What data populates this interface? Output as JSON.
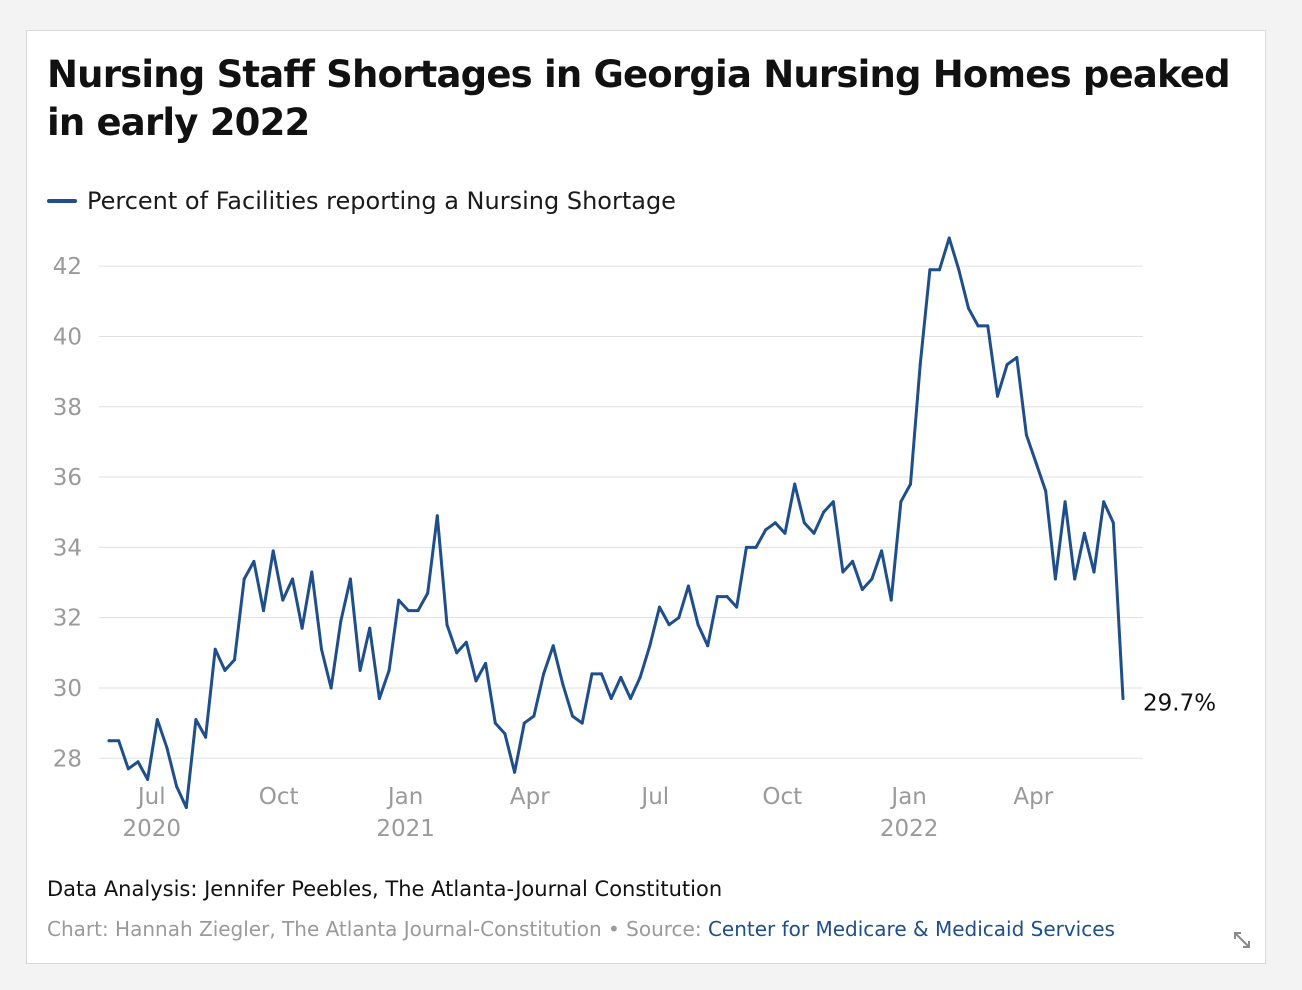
{
  "title": "Nursing Staff Shortages in Georgia Nursing Homes peaked in early 2022",
  "legend": {
    "label": "Percent of Facilities reporting a Nursing Shortage"
  },
  "colors": {
    "line": "#1f4e8c",
    "grid": "#e0e0e0",
    "tick": "#9a9a9a",
    "text": "#111111"
  },
  "chart_data": {
    "type": "line",
    "title": "Nursing Staff Shortages in Georgia Nursing Homes peaked in early 2022",
    "xlabel": "",
    "ylabel": "",
    "grid": true,
    "legend_position": "top-left",
    "x_start": "2020-05-31",
    "x_end": "2022-06-05",
    "ylim": [
      26.5,
      43
    ],
    "yticks": [
      28,
      30,
      32,
      34,
      36,
      38,
      40,
      42
    ],
    "xticks": [
      {
        "date": "2020-07-01",
        "label": "Jul",
        "sub": "2020"
      },
      {
        "date": "2020-10-01",
        "label": "Oct",
        "sub": ""
      },
      {
        "date": "2021-01-01",
        "label": "Jan",
        "sub": "2021"
      },
      {
        "date": "2021-04-01",
        "label": "Apr",
        "sub": ""
      },
      {
        "date": "2021-07-01",
        "label": "Jul",
        "sub": ""
      },
      {
        "date": "2021-10-01",
        "label": "Oct",
        "sub": ""
      },
      {
        "date": "2022-01-01",
        "label": "Jan",
        "sub": "2022"
      },
      {
        "date": "2022-04-01",
        "label": "Apr",
        "sub": ""
      }
    ],
    "end_label": "29.7%",
    "series": [
      {
        "name": "Percent of Facilities reporting a Nursing Shortage",
        "points": [
          [
            "2020-05-31",
            28.5
          ],
          [
            "2020-06-07",
            28.5
          ],
          [
            "2020-06-14",
            27.7
          ],
          [
            "2020-06-21",
            27.9
          ],
          [
            "2020-06-28",
            27.4
          ],
          [
            "2020-07-05",
            29.1
          ],
          [
            "2020-07-12",
            28.3
          ],
          [
            "2020-07-19",
            27.2
          ],
          [
            "2020-07-26",
            26.6
          ],
          [
            "2020-08-02",
            29.1
          ],
          [
            "2020-08-09",
            28.6
          ],
          [
            "2020-08-16",
            31.1
          ],
          [
            "2020-08-23",
            30.5
          ],
          [
            "2020-08-30",
            30.8
          ],
          [
            "2020-09-06",
            33.1
          ],
          [
            "2020-09-13",
            33.6
          ],
          [
            "2020-09-20",
            32.2
          ],
          [
            "2020-09-27",
            33.9
          ],
          [
            "2020-10-04",
            32.5
          ],
          [
            "2020-10-11",
            33.1
          ],
          [
            "2020-10-18",
            31.7
          ],
          [
            "2020-10-25",
            33.3
          ],
          [
            "2020-11-01",
            31.1
          ],
          [
            "2020-11-08",
            30.0
          ],
          [
            "2020-11-15",
            31.9
          ],
          [
            "2020-11-22",
            33.1
          ],
          [
            "2020-11-29",
            30.5
          ],
          [
            "2020-12-06",
            31.7
          ],
          [
            "2020-12-13",
            29.7
          ],
          [
            "2020-12-20",
            30.5
          ],
          [
            "2020-12-27",
            32.5
          ],
          [
            "2021-01-03",
            32.2
          ],
          [
            "2021-01-10",
            32.2
          ],
          [
            "2021-01-17",
            32.7
          ],
          [
            "2021-01-24",
            34.9
          ],
          [
            "2021-01-31",
            31.8
          ],
          [
            "2021-02-07",
            31.0
          ],
          [
            "2021-02-14",
            31.3
          ],
          [
            "2021-02-21",
            30.2
          ],
          [
            "2021-02-28",
            30.7
          ],
          [
            "2021-03-07",
            29.0
          ],
          [
            "2021-03-14",
            28.7
          ],
          [
            "2021-03-21",
            27.6
          ],
          [
            "2021-03-28",
            29.0
          ],
          [
            "2021-04-04",
            29.2
          ],
          [
            "2021-04-11",
            30.4
          ],
          [
            "2021-04-18",
            31.2
          ],
          [
            "2021-04-25",
            30.1
          ],
          [
            "2021-05-02",
            29.2
          ],
          [
            "2021-05-09",
            29.0
          ],
          [
            "2021-05-16",
            30.4
          ],
          [
            "2021-05-23",
            30.4
          ],
          [
            "2021-05-30",
            29.7
          ],
          [
            "2021-06-06",
            30.3
          ],
          [
            "2021-06-13",
            29.7
          ],
          [
            "2021-06-20",
            30.3
          ],
          [
            "2021-06-27",
            31.2
          ],
          [
            "2021-07-04",
            32.3
          ],
          [
            "2021-07-11",
            31.8
          ],
          [
            "2021-07-18",
            32.0
          ],
          [
            "2021-07-25",
            32.9
          ],
          [
            "2021-08-01",
            31.8
          ],
          [
            "2021-08-08",
            31.2
          ],
          [
            "2021-08-15",
            32.6
          ],
          [
            "2021-08-22",
            32.6
          ],
          [
            "2021-08-29",
            32.3
          ],
          [
            "2021-09-05",
            34.0
          ],
          [
            "2021-09-12",
            34.0
          ],
          [
            "2021-09-19",
            34.5
          ],
          [
            "2021-09-26",
            34.7
          ],
          [
            "2021-10-03",
            34.4
          ],
          [
            "2021-10-10",
            35.8
          ],
          [
            "2021-10-17",
            34.7
          ],
          [
            "2021-10-24",
            34.4
          ],
          [
            "2021-10-31",
            35.0
          ],
          [
            "2021-11-07",
            35.3
          ],
          [
            "2021-11-14",
            33.3
          ],
          [
            "2021-11-21",
            33.6
          ],
          [
            "2021-11-28",
            32.8
          ],
          [
            "2021-12-05",
            33.1
          ],
          [
            "2021-12-12",
            33.9
          ],
          [
            "2021-12-19",
            32.5
          ],
          [
            "2021-12-26",
            35.3
          ],
          [
            "2022-01-02",
            35.8
          ],
          [
            "2022-01-09",
            39.2
          ],
          [
            "2022-01-16",
            41.9
          ],
          [
            "2022-01-23",
            41.9
          ],
          [
            "2022-01-30",
            42.8
          ],
          [
            "2022-02-06",
            41.9
          ],
          [
            "2022-02-13",
            40.8
          ],
          [
            "2022-02-20",
            40.3
          ],
          [
            "2022-02-27",
            40.3
          ],
          [
            "2022-03-06",
            38.3
          ],
          [
            "2022-03-13",
            39.2
          ],
          [
            "2022-03-20",
            39.4
          ],
          [
            "2022-03-27",
            37.2
          ],
          [
            "2022-04-03",
            36.4
          ],
          [
            "2022-04-10",
            35.6
          ],
          [
            "2022-04-17",
            33.1
          ],
          [
            "2022-04-24",
            35.3
          ],
          [
            "2022-05-01",
            33.1
          ],
          [
            "2022-05-08",
            34.4
          ],
          [
            "2022-05-15",
            33.3
          ],
          [
            "2022-05-22",
            35.3
          ],
          [
            "2022-05-29",
            34.7
          ],
          [
            "2022-06-05",
            29.7
          ]
        ]
      }
    ]
  },
  "footer": {
    "analysis": "Data Analysis: Jennifer Peebles, The Atlanta-Journal Constitution",
    "chart_credit": "Chart: Hannah Ziegler, The Atlanta Journal-Constitution",
    "separator": " • ",
    "source_label": "Source: ",
    "source_name": "Center for Medicare & Medicaid Services"
  }
}
